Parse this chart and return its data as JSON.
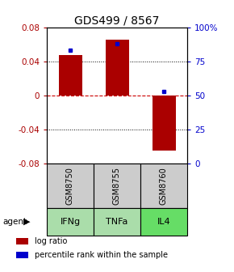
{
  "title": "GDS499 / 8567",
  "samples": [
    "GSM8750",
    "GSM8755",
    "GSM8760"
  ],
  "agents": [
    "IFNg",
    "TNFa",
    "IL4"
  ],
  "log_ratios": [
    0.047,
    0.065,
    -0.065
  ],
  "percentile_ranks": [
    83,
    88,
    53
  ],
  "ylim_left": [
    -0.08,
    0.08
  ],
  "ylim_right": [
    0,
    100
  ],
  "yticks_left": [
    -0.08,
    -0.04,
    0,
    0.04,
    0.08
  ],
  "yticks_right": [
    0,
    25,
    50,
    75,
    100
  ],
  "ytick_labels_right": [
    "0",
    "25",
    "50",
    "75",
    "100%"
  ],
  "bar_color": "#AA0000",
  "dot_color": "#0000CC",
  "zero_line_color": "#CC0000",
  "sample_bg_color": "#CCCCCC",
  "agent_bg_color_light": "#AADDAA",
  "agent_bg_color_bright": "#66DD66",
  "agent_colors": [
    "#AADDAA",
    "#AADDAA",
    "#66DD66"
  ],
  "bar_width": 0.5,
  "title_fontsize": 10,
  "tick_fontsize": 7.5,
  "label_fontsize": 7.5,
  "sample_label_fontsize": 7,
  "legend_fontsize": 7,
  "agent_label_fontsize": 8
}
